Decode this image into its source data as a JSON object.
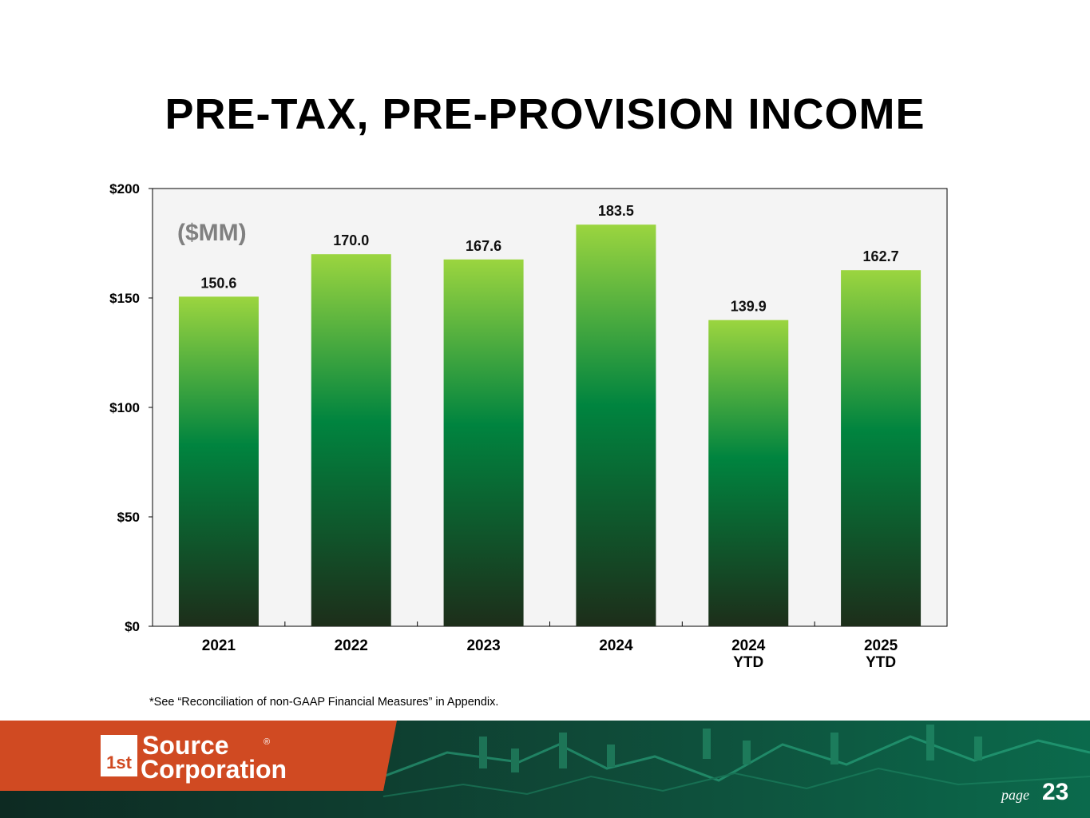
{
  "title": "PRE-TAX, PRE-PROVISION INCOME",
  "footnote": "*See “Reconciliation of non-GAAP Financial Measures” in Appendix.",
  "logo": {
    "mark_text": "1st",
    "line1": "Source",
    "line2": "Corporation",
    "registered": "®"
  },
  "page": {
    "label": "page",
    "number": "23"
  },
  "colors": {
    "bar_top": "#9bd53f",
    "bar_mid": "#00843f",
    "bar_bottom": "#1d2e1a",
    "plot_background": "#f4f4f4",
    "footer_orange": "#d04a22",
    "footer_dark": "#0b3b2e",
    "unit_label": "#808080"
  },
  "chart_data": {
    "type": "bar",
    "unit_label": "($MM)",
    "categories": [
      [
        "2021"
      ],
      [
        "2022"
      ],
      [
        "2023"
      ],
      [
        "2024"
      ],
      [
        "2024",
        "YTD"
      ],
      [
        "2025",
        "YTD"
      ]
    ],
    "values": [
      150.6,
      170.0,
      167.6,
      183.5,
      139.9,
      162.7
    ],
    "value_labels": [
      "150.6",
      "170.0",
      "167.6",
      "183.5",
      "139.9",
      "162.7"
    ],
    "ylim": [
      0,
      200
    ],
    "yticks": [
      0,
      50,
      100,
      150,
      200
    ],
    "ytick_labels": [
      "$0",
      "$50",
      "$100",
      "$150",
      "$200"
    ],
    "grid": false,
    "legend": "none"
  }
}
